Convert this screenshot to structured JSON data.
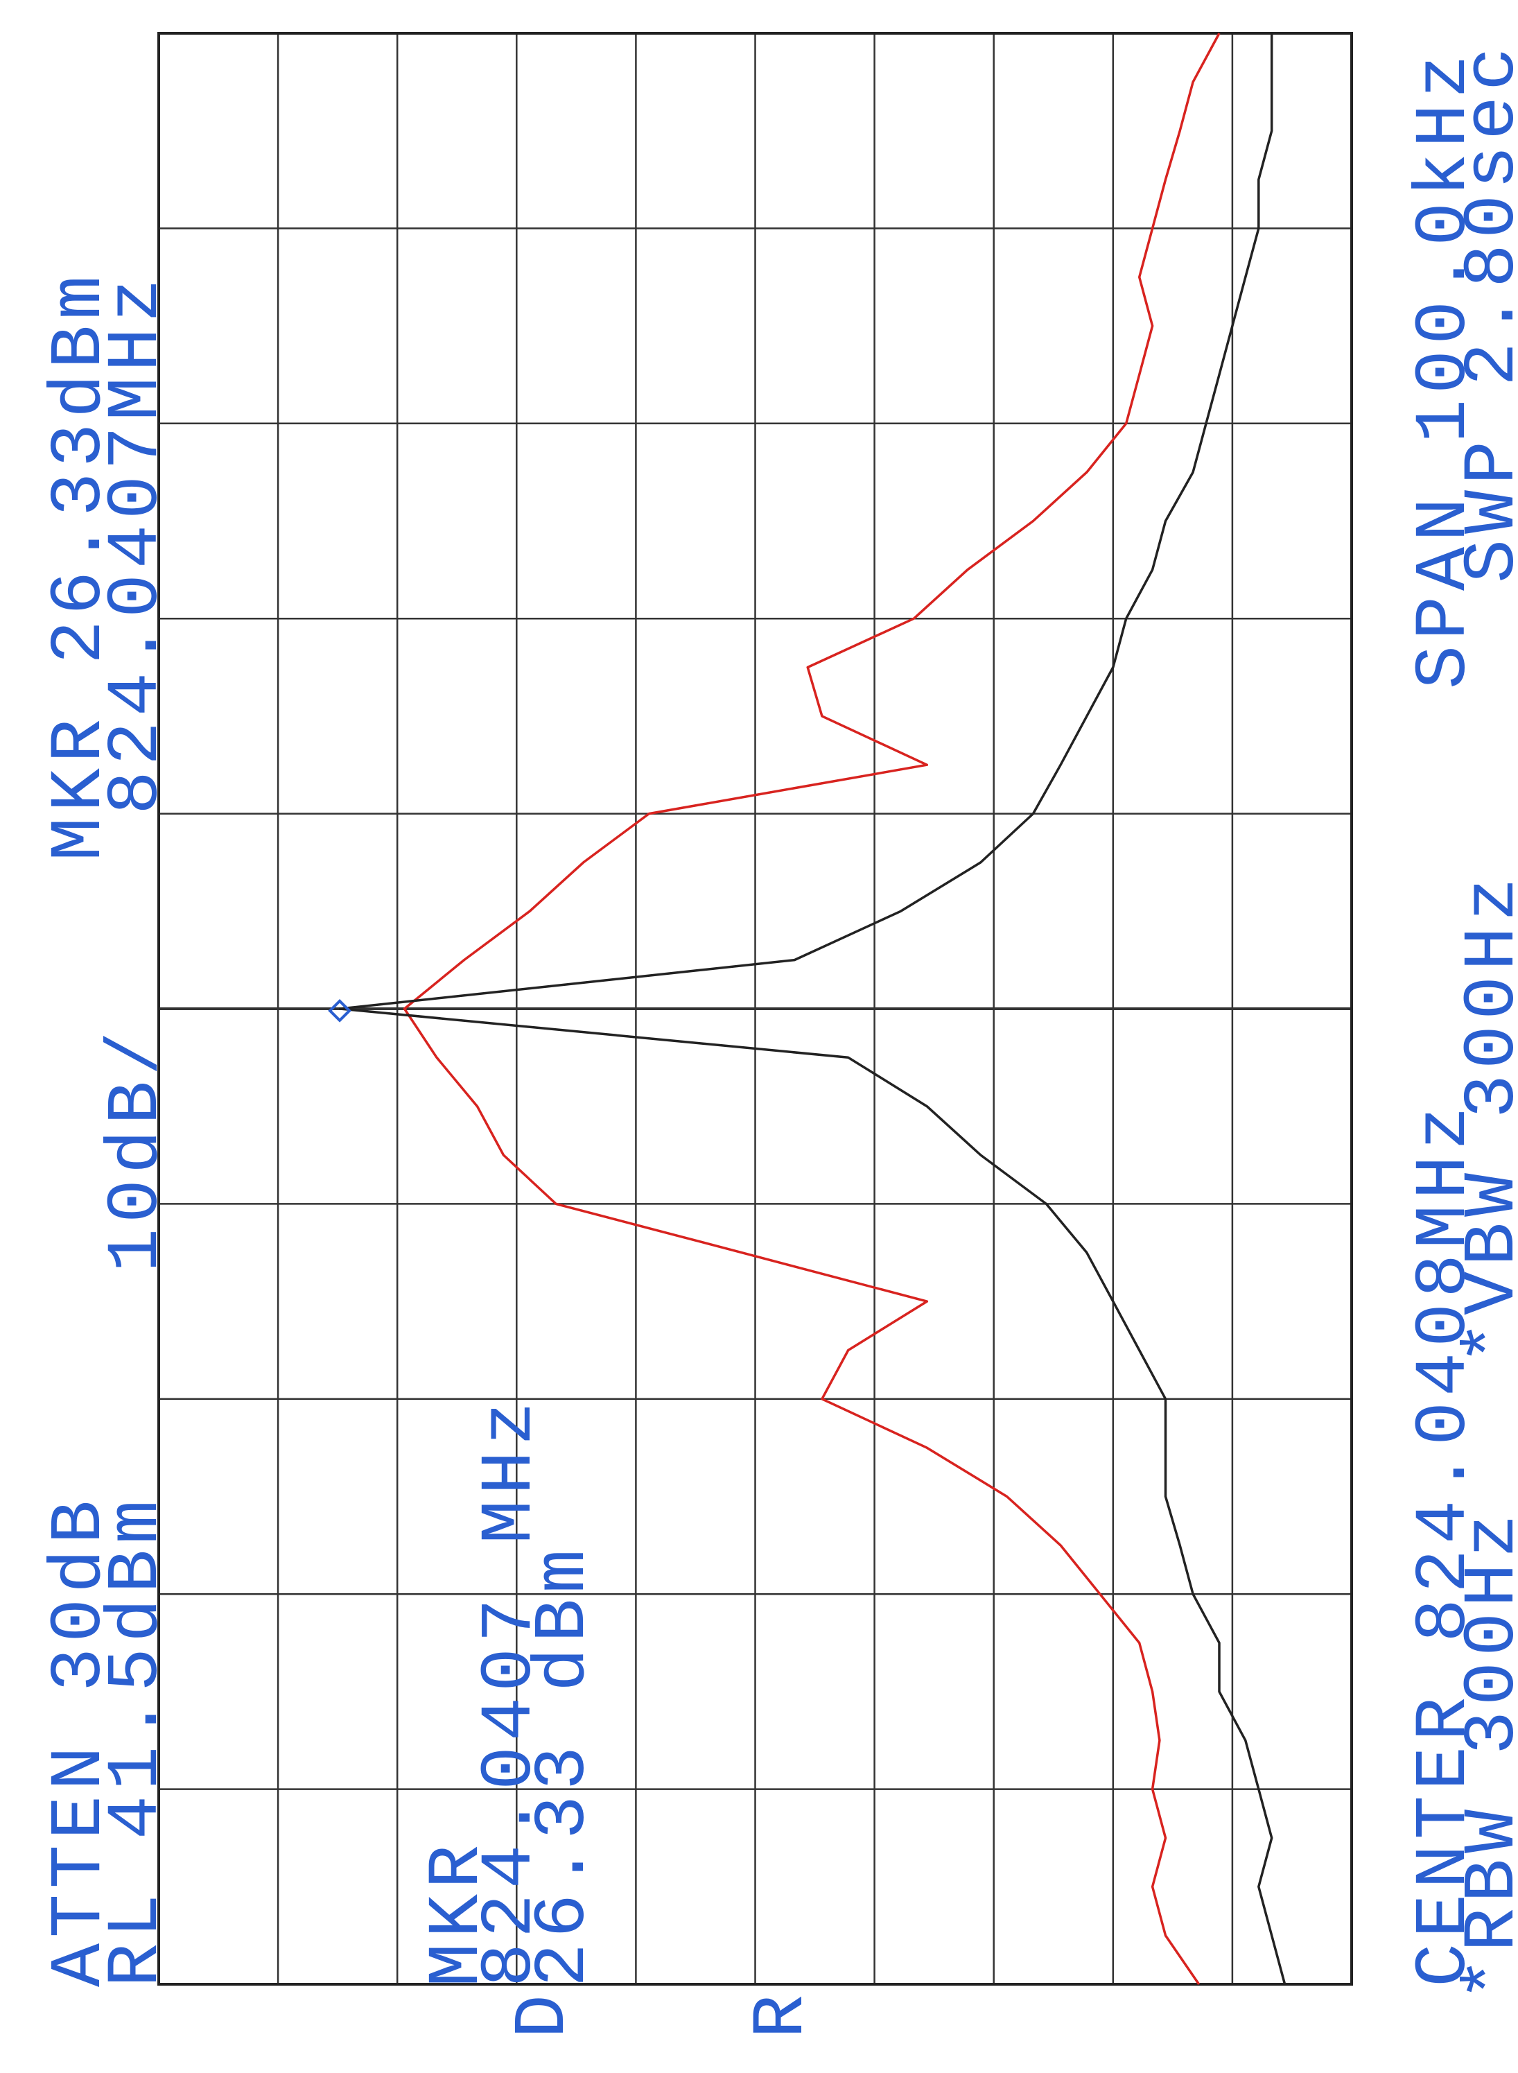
{
  "chart_data": {
    "type": "line",
    "annotations": [
      "ATTEN 30dB",
      "RL 41.5dBm",
      "10dB/",
      "MKR 26.33dBm",
      "824.0407MHz",
      "CENTER 824.0408MHz",
      "*RBW 300Hz",
      "*VBW 300Hz",
      "SPAN 100.0kHz",
      "SWP 2.80sec",
      "MKR",
      "824.0407 MHz",
      "26.33 dBm",
      "D",
      "R"
    ],
    "x": [
      823.9908,
      823.9933,
      823.9958,
      823.9983,
      824.0008,
      824.0033,
      824.0058,
      824.0083,
      824.0108,
      824.0133,
      824.0158,
      824.0183,
      824.0208,
      824.0233,
      824.0258,
      824.0283,
      824.0308,
      824.0333,
      824.0358,
      824.0383,
      824.0408,
      824.0433,
      824.0458,
      824.0483,
      824.0508,
      824.0533,
      824.0558,
      824.0583,
      824.0608,
      824.0633,
      824.0658,
      824.0683,
      824.0708,
      824.0733,
      824.0758,
      824.0783,
      824.0808,
      824.0833,
      824.0858,
      824.0883,
      824.0908
    ],
    "series": [
      {
        "color": "#d8231f",
        "values": [
          -45.7,
          -42.9,
          -41.8,
          -42.9,
          -41.8,
          -42.4,
          -41.8,
          -40.7,
          -37.4,
          -34.1,
          -29.6,
          -22.9,
          -14.1,
          -16.3,
          -22.9,
          -7.4,
          8.2,
          12.6,
          14.8,
          18.2,
          20.9,
          15.9,
          10.4,
          5.9,
          0.4,
          -22.9,
          -14.1,
          -12.9,
          -21.8,
          -26.3,
          -31.8,
          -36.3,
          -39.6,
          -40.7,
          -41.8,
          -40.7,
          -41.8,
          -42.9,
          -44.1,
          -45.2,
          -47.4
        ]
      },
      {
        "color": "#222222",
        "values": [
          -52.9,
          -51.8,
          -50.7,
          -51.8,
          -50.7,
          -49.6,
          -47.4,
          -47.4,
          -45.2,
          -44.1,
          -42.9,
          -42.9,
          -42.9,
          -40.7,
          -38.5,
          -36.3,
          -32.9,
          -27.4,
          -22.9,
          -16.3,
          26.3,
          -11.8,
          -20.7,
          -27.4,
          -31.8,
          -34.1,
          -36.3,
          -38.5,
          -39.6,
          -41.8,
          -42.9,
          -45.2,
          -46.3,
          -47.4,
          -48.5,
          -49.6,
          -50.7,
          -50.7,
          -51.8,
          -51.8,
          -51.8
        ]
      }
    ],
    "marker": {
      "x": 824.0407,
      "y": 26.33,
      "color": "#2a5fd0"
    },
    "xlim": [
      823.9908,
      824.0908
    ],
    "ylim": [
      -58.5,
      41.5
    ],
    "xticks": [
      823.9908,
      824.0008,
      824.0108,
      824.0208,
      824.0308,
      824.0408,
      824.0508,
      824.0608,
      824.0708,
      824.0808,
      824.0908
    ],
    "yticks": [
      -58.5,
      -48.5,
      -38.5,
      -28.5,
      -18.5,
      -8.5,
      1.5,
      11.5,
      21.5,
      31.5,
      41.5
    ],
    "grid": true,
    "text_color": "#2a5fd0"
  }
}
